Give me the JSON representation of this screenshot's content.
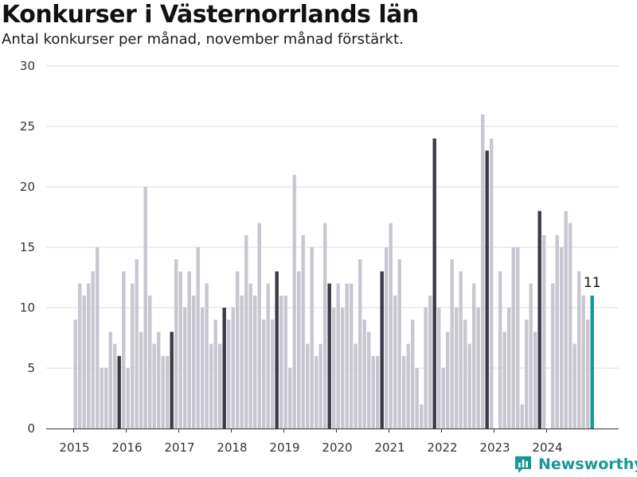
{
  "header": {
    "title": "Konkurser i Västernorrlands län",
    "subtitle": "Antal konkurser per månad, november månad förstärkt."
  },
  "brand": {
    "name": "Newsworthy",
    "icon": "bar-chart-logo-icon"
  },
  "colors": {
    "normal": "#c8c7d1",
    "november": "#3b3a48",
    "latest": "#159a93",
    "grid": "#dddddd",
    "axis": "#333333"
  },
  "chart_data": {
    "type": "bar",
    "title": "Konkurser i Västernorrlands län",
    "ylim": [
      0,
      30
    ],
    "yticks": [
      "0",
      "5",
      "10",
      "15",
      "20",
      "25",
      "30"
    ],
    "year_labels": [
      "2015",
      "2016",
      "2017",
      "2018",
      "2019",
      "2020",
      "2021",
      "2022",
      "2023",
      "2024"
    ],
    "start": "2015-01",
    "highlight_month": "november",
    "highlighted_value_label": "11",
    "grid": true,
    "values": [
      9,
      12,
      11,
      12,
      13,
      15,
      5,
      5,
      8,
      7,
      6,
      13,
      5,
      12,
      14,
      8,
      20,
      11,
      7,
      8,
      6,
      6,
      8,
      14,
      13,
      10,
      13,
      11,
      15,
      10,
      12,
      7,
      9,
      7,
      10,
      9,
      10,
      13,
      11,
      16,
      12,
      11,
      17,
      9,
      12,
      9,
      13,
      11,
      11,
      5,
      21,
      13,
      16,
      7,
      15,
      6,
      7,
      17,
      12,
      10,
      12,
      10,
      12,
      12,
      7,
      14,
      9,
      8,
      6,
      6,
      13,
      15,
      17,
      11,
      14,
      6,
      7,
      9,
      5,
      2,
      10,
      11,
      24,
      10,
      5,
      8,
      14,
      10,
      13,
      9,
      7,
      12,
      10,
      26,
      23,
      24,
      0,
      13,
      8,
      10,
      15,
      15,
      2,
      9,
      12,
      8,
      18,
      16,
      0,
      12,
      16,
      15,
      18,
      17,
      7,
      13,
      11,
      9,
      11
    ]
  }
}
